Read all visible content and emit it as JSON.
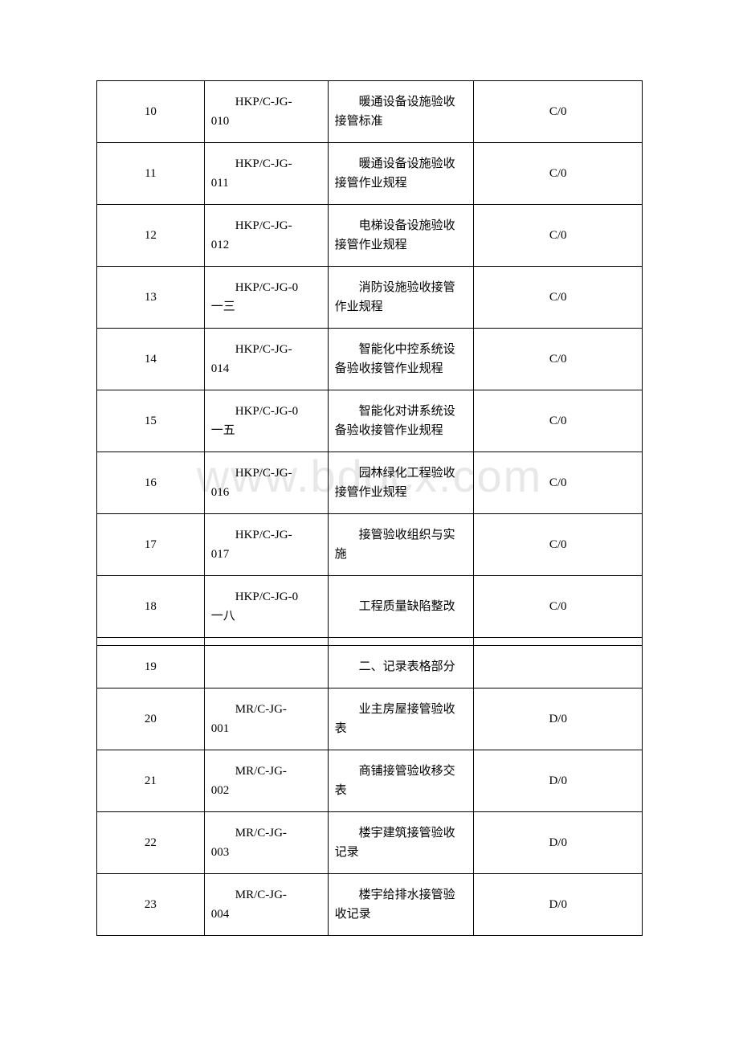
{
  "watermark": "www.bdocx.com",
  "table": {
    "rows": [
      {
        "index": "10",
        "code_l1": "HKP/C-JG-",
        "code_l2": "010",
        "desc": "暖通设备设施验收接管标准",
        "rev": "C/0",
        "spacer": false
      },
      {
        "index": "11",
        "code_l1": "HKP/C-JG-",
        "code_l2": "011",
        "desc": "暖通设备设施验收接管作业规程",
        "rev": "C/0",
        "spacer": false
      },
      {
        "index": "12",
        "code_l1": "HKP/C-JG-",
        "code_l2": "012",
        "desc": "电梯设备设施验收接管作业规程",
        "rev": "C/0",
        "spacer": false
      },
      {
        "index": "13",
        "code_l1": "HKP/C-JG-0",
        "code_l2": "一三",
        "desc": "消防设施验收接管作业规程",
        "rev": "C/0",
        "spacer": false
      },
      {
        "index": "14",
        "code_l1": "HKP/C-JG-",
        "code_l2": "014",
        "desc": "智能化中控系统设备验收接管作业规程",
        "rev": "C/0",
        "spacer": false
      },
      {
        "index": "15",
        "code_l1": "HKP/C-JG-0",
        "code_l2": "一五",
        "desc": "智能化对讲系统设备验收接管作业规程",
        "rev": "C/0",
        "spacer": false
      },
      {
        "index": "16",
        "code_l1": "HKP/C-JG-",
        "code_l2": "016",
        "desc": "园林绿化工程验收接管作业规程",
        "rev": "C/0",
        "spacer": false
      },
      {
        "index": "17",
        "code_l1": "HKP/C-JG-",
        "code_l2": "017",
        "desc": "接管验收组织与实施",
        "rev": "C/0",
        "spacer": false
      },
      {
        "index": "18",
        "code_l1": "HKP/C-JG-0",
        "code_l2": "一八",
        "desc": "工程质量缺陷整改",
        "rev": "C/0",
        "spacer": false
      },
      {
        "index": "",
        "code_l1": "",
        "code_l2": "",
        "desc": "",
        "rev": "",
        "spacer": true
      },
      {
        "index": "19",
        "code_l1": "",
        "code_l2": "",
        "desc": "二、记录表格部分",
        "rev": "",
        "spacer": false
      },
      {
        "index": "20",
        "code_l1": "MR/C-JG-",
        "code_l2": "001",
        "desc": "业主房屋接管验收表",
        "rev": "D/0",
        "spacer": false
      },
      {
        "index": "21",
        "code_l1": "MR/C-JG-",
        "code_l2": "002",
        "desc": "商铺接管验收移交表",
        "rev": "D/0",
        "spacer": false
      },
      {
        "index": "22",
        "code_l1": "MR/C-JG-",
        "code_l2": "003",
        "desc": "楼宇建筑接管验收记录",
        "rev": "D/0",
        "spacer": false
      },
      {
        "index": "23",
        "code_l1": "MR/C-JG-",
        "code_l2": "004",
        "desc": "楼宇给排水接管验收记录",
        "rev": "D/0",
        "spacer": false
      }
    ]
  }
}
